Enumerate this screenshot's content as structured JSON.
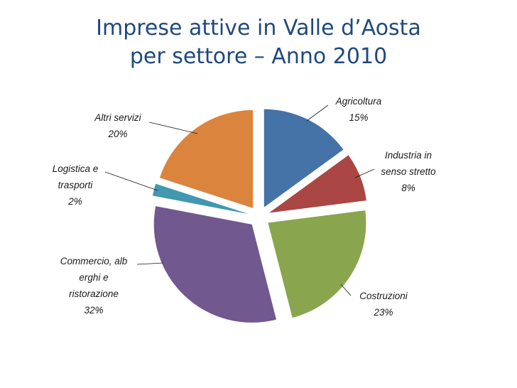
{
  "slide": {
    "title_line1": "Imprese attive in Valle d’Aosta",
    "title_line2": "per settore – Anno 2010"
  },
  "chart_data": {
    "type": "pie",
    "exploded": true,
    "categories": [
      "Agricoltura",
      "Industria in senso stretto",
      "Costruzioni",
      "Commercio, alberghi e ristorazione",
      "Logistica e trasporti",
      "Altri servizi"
    ],
    "values": [
      15,
      8,
      23,
      32,
      2,
      20
    ],
    "unit": "%",
    "label_lines": [
      [
        "Agricoltura",
        "15%"
      ],
      [
        "Industria in",
        "senso stretto",
        "8%"
      ],
      [
        "Costruzioni",
        "23%"
      ],
      [
        "Commercio, alb",
        "erghi e",
        "ristorazione",
        "32%"
      ],
      [
        "Logistica e",
        "trasporti",
        "2%"
      ],
      [
        "Altri servizi",
        "20%"
      ]
    ],
    "colors": [
      "#4572a7",
      "#aa4643",
      "#89a54e",
      "#71588f",
      "#4198af",
      "#db843d"
    ],
    "legend": "none"
  }
}
